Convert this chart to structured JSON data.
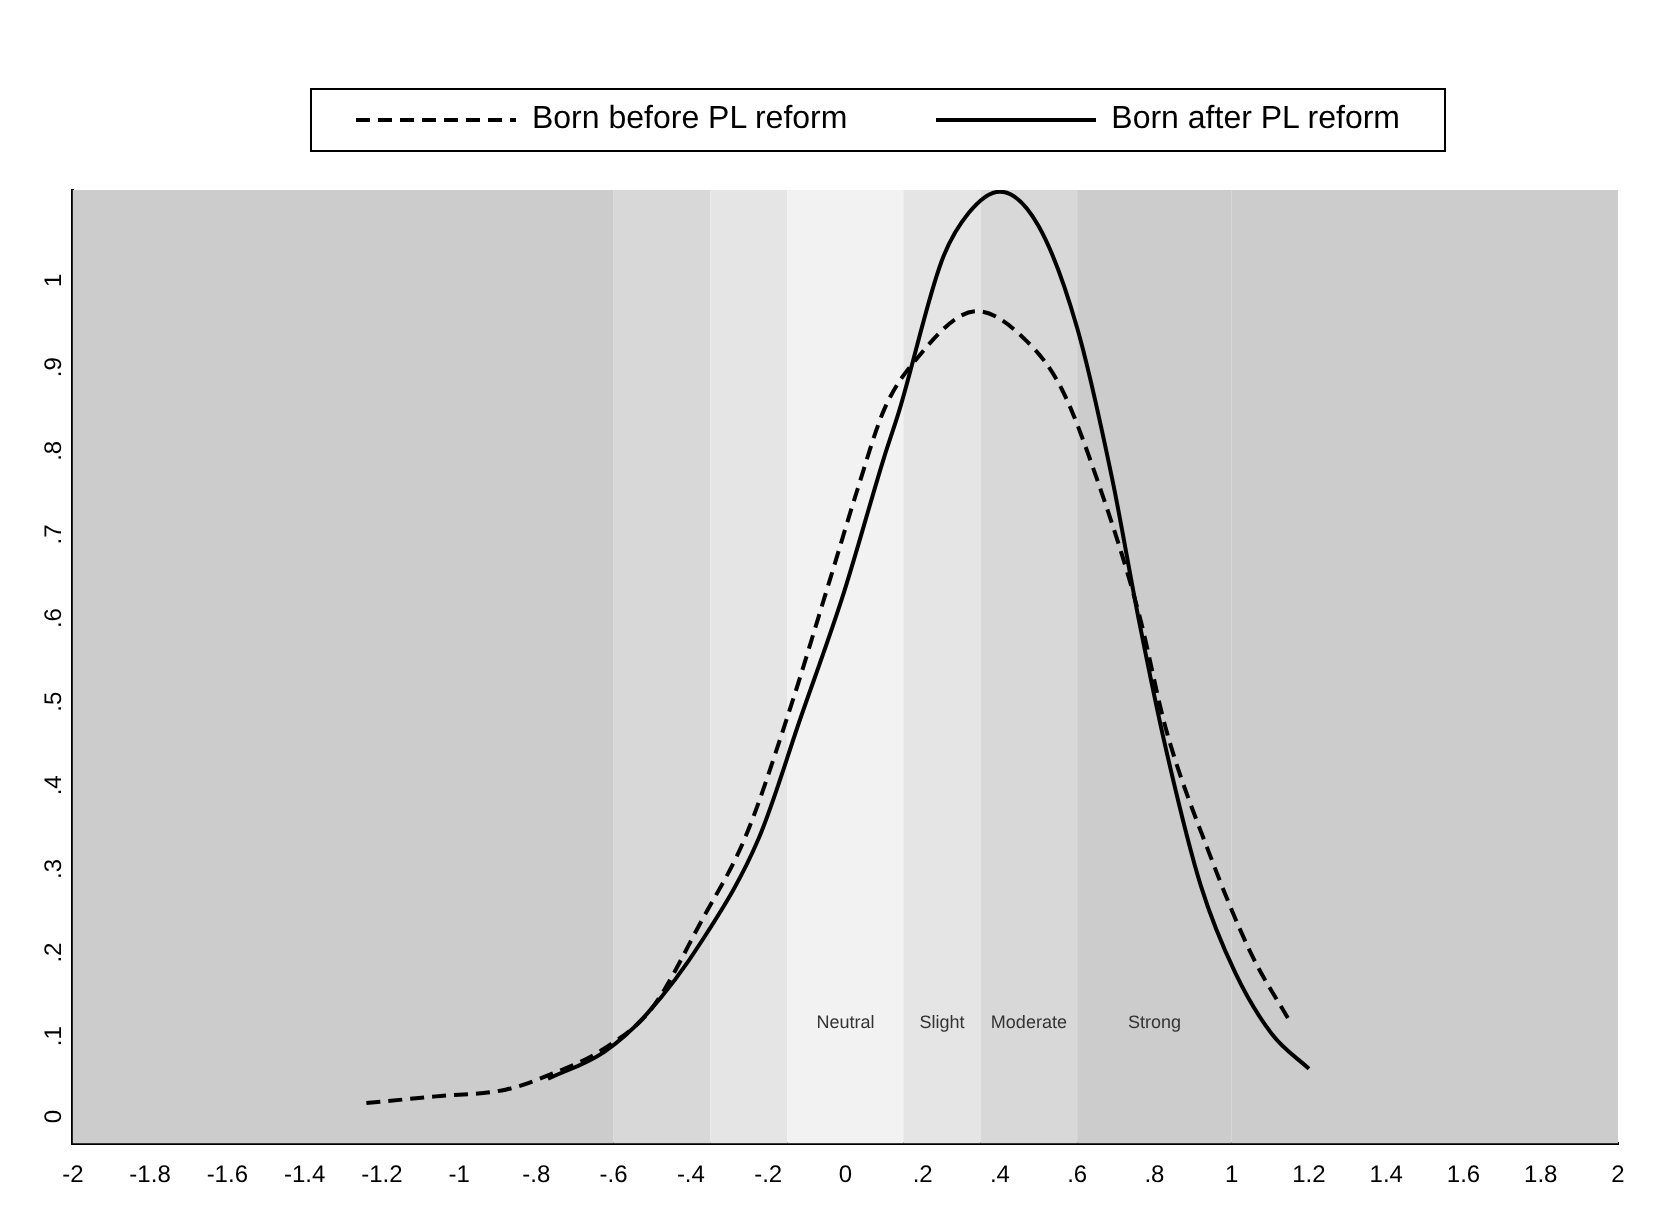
{
  "chart_data": {
    "type": "line",
    "legend": "top",
    "grid": false,
    "marker": "none",
    "xlim": [
      -2,
      2
    ],
    "xticks": [
      {
        "value": -2,
        "label": "-2"
      },
      {
        "value": -1.8,
        "label": "-1.8"
      },
      {
        "value": -1.6,
        "label": "-1.6"
      },
      {
        "value": -1.4,
        "label": "-1.4"
      },
      {
        "value": -1.2,
        "label": "-1.2"
      },
      {
        "value": -1,
        "label": "-1"
      },
      {
        "value": -0.8,
        "label": "-.8"
      },
      {
        "value": -0.6,
        "label": "-.6"
      },
      {
        "value": -0.4,
        "label": "-.4"
      },
      {
        "value": -0.2,
        "label": "-.2"
      },
      {
        "value": 0,
        "label": "0"
      },
      {
        "value": 0.2,
        "label": ".2"
      },
      {
        "value": 0.4,
        "label": ".4"
      },
      {
        "value": 0.6,
        "label": ".6"
      },
      {
        "value": 0.8,
        "label": ".8"
      },
      {
        "value": 1,
        "label": "1"
      },
      {
        "value": 1.2,
        "label": "1.2"
      },
      {
        "value": 1.4,
        "label": "1.4"
      },
      {
        "value": 1.6,
        "label": "1.6"
      },
      {
        "value": 1.8,
        "label": "1.8"
      },
      {
        "value": 2,
        "label": "2"
      }
    ],
    "ylim": [
      -0.04,
      1.1
    ],
    "yticks": [
      {
        "value": 0,
        "label": "0"
      },
      {
        "value": 0.1,
        "label": ".1"
      },
      {
        "value": 0.2,
        "label": ".2"
      },
      {
        "value": 0.3,
        "label": ".3"
      },
      {
        "value": 0.4,
        "label": ".4"
      },
      {
        "value": 0.5,
        "label": ".5"
      },
      {
        "value": 0.6,
        "label": ".6"
      },
      {
        "value": 0.7,
        "label": ".7"
      },
      {
        "value": 0.8,
        "label": ".8"
      },
      {
        "value": 0.9,
        "label": ".9"
      },
      {
        "value": 1,
        "label": "1"
      }
    ],
    "bands": [
      {
        "axis": "x",
        "from": -2,
        "to": -0.6,
        "color": "#cccccc"
      },
      {
        "axis": "x",
        "from": -0.6,
        "to": -0.35,
        "color": "#d8d8d8"
      },
      {
        "axis": "x",
        "from": -0.35,
        "to": -0.15,
        "color": "#e5e5e5"
      },
      {
        "axis": "x",
        "from": -0.15,
        "to": 0.15,
        "color": "#f2f2f2",
        "label": "Neutral"
      },
      {
        "axis": "x",
        "from": 0.15,
        "to": 0.35,
        "color": "#e5e5e5",
        "label": "Slight"
      },
      {
        "axis": "x",
        "from": 0.35,
        "to": 0.6,
        "color": "#d8d8d8",
        "label": "Moderate"
      },
      {
        "axis": "x",
        "from": 0.6,
        "to": 1,
        "color": "#cccccc",
        "label": "Strong"
      },
      {
        "axis": "x",
        "from": 1,
        "to": 2,
        "color": "#cccccc"
      }
    ],
    "series": [
      {
        "name": "Born before PL reform",
        "color": "#000000",
        "line_style": "dashed",
        "x": [
          -1.24,
          -1.06,
          -0.88,
          -0.77,
          -0.625,
          -0.5,
          -0.37,
          -0.26,
          -0.15,
          -0.04,
          0.03,
          0.1,
          0.177,
          0.34,
          0.47,
          0.56,
          0.65,
          0.76,
          0.83,
          0.94,
          1.05,
          1.15
        ],
        "values": [
          0.008,
          0.016,
          0.024,
          0.041,
          0.073,
          0.122,
          0.228,
          0.325,
          0.47,
          0.634,
          0.74,
          0.837,
          0.894,
          0.955,
          0.919,
          0.862,
          0.756,
          0.593,
          0.455,
          0.309,
          0.187,
          0.106
        ]
      },
      {
        "name": "Born after PL reform",
        "color": "#000000",
        "line_style": "solid",
        "x": [
          -0.77,
          -0.625,
          -0.515,
          -0.37,
          -0.224,
          -0.115,
          -0.005,
          0.1,
          0.14,
          0.25,
          0.32,
          0.4,
          0.5,
          0.6,
          0.69,
          0.76,
          0.83,
          0.92,
          1.01,
          1.105,
          1.2
        ],
        "values": [
          0.037,
          0.069,
          0.114,
          0.203,
          0.325,
          0.47,
          0.617,
          0.78,
          0.837,
          1.016,
          1.073,
          1.098,
          1.057,
          0.935,
          0.756,
          0.585,
          0.431,
          0.268,
          0.163,
          0.09,
          0.049
        ]
      }
    ]
  }
}
